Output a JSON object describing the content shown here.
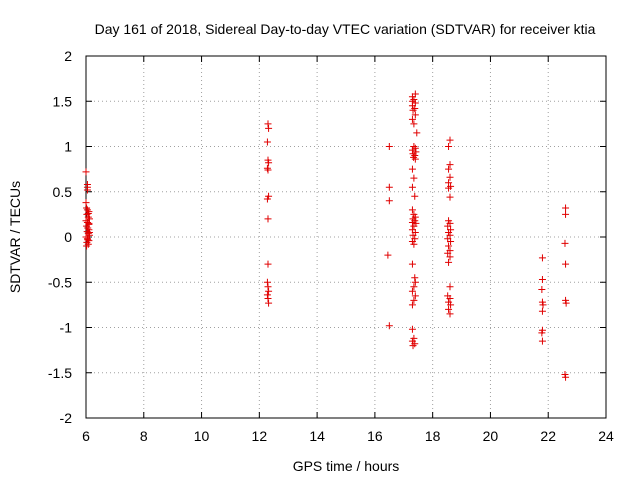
{
  "chart_data": {
    "type": "scatter",
    "title": "Day 161 of 2018, Sidereal Day-to-day VTEC variation (SDTVAR) for receiver ktia",
    "xlabel": "GPS time / hours",
    "ylabel": "SDTVAR / TECUs",
    "xlim": [
      6,
      24
    ],
    "ylim": [
      -2,
      2
    ],
    "xticks": [
      6,
      8,
      10,
      12,
      14,
      16,
      18,
      20,
      22,
      24
    ],
    "yticks": [
      -2,
      -1.5,
      -1,
      -0.5,
      0,
      0.5,
      1,
      1.5,
      2
    ],
    "ytick_labels": [
      "-2",
      "-1.5",
      "-1",
      "-0.5",
      "0",
      "0.5",
      "1",
      "1.5",
      "2"
    ],
    "grid": true,
    "marker": "plus",
    "marker_color": "#e00000",
    "points": [
      [
        6.0,
        0.72
      ],
      [
        6.05,
        0.58
      ],
      [
        6.05,
        0.55
      ],
      [
        6.05,
        0.52
      ],
      [
        6.0,
        0.38
      ],
      [
        6.02,
        0.32
      ],
      [
        6.05,
        0.3
      ],
      [
        6.1,
        0.28
      ],
      [
        6.08,
        0.26
      ],
      [
        6.03,
        0.25
      ],
      [
        6.08,
        0.22
      ],
      [
        6.12,
        0.2
      ],
      [
        6.0,
        0.18
      ],
      [
        6.05,
        0.16
      ],
      [
        6.1,
        0.14
      ],
      [
        6.02,
        0.12
      ],
      [
        6.06,
        0.1
      ],
      [
        6.1,
        0.08
      ],
      [
        6.04,
        0.06
      ],
      [
        6.08,
        0.04
      ],
      [
        6.12,
        0.02
      ],
      [
        6.0,
        0.0
      ],
      [
        6.05,
        -0.02
      ],
      [
        6.1,
        -0.04
      ],
      [
        6.03,
        -0.06
      ],
      [
        6.08,
        -0.08
      ],
      [
        6.02,
        -0.1
      ],
      [
        6.12,
        0.05
      ],
      [
        6.06,
        -0.03
      ],
      [
        6.1,
        0.15
      ],
      [
        12.3,
        1.25
      ],
      [
        12.32,
        1.2
      ],
      [
        12.28,
        1.05
      ],
      [
        12.3,
        0.85
      ],
      [
        12.32,
        0.82
      ],
      [
        12.28,
        0.76
      ],
      [
        12.3,
        0.74
      ],
      [
        12.32,
        0.45
      ],
      [
        12.28,
        0.42
      ],
      [
        12.3,
        0.2
      ],
      [
        12.3,
        -0.3
      ],
      [
        12.28,
        -0.5
      ],
      [
        12.3,
        -0.55
      ],
      [
        12.32,
        -0.6
      ],
      [
        12.28,
        -0.64
      ],
      [
        12.3,
        -0.68
      ],
      [
        12.32,
        -0.73
      ],
      [
        16.5,
        1.0
      ],
      [
        16.5,
        0.55
      ],
      [
        16.5,
        0.4
      ],
      [
        16.45,
        -0.2
      ],
      [
        16.5,
        -0.98
      ],
      [
        17.3,
        1.55
      ],
      [
        17.4,
        1.58
      ],
      [
        17.35,
        1.52
      ],
      [
        17.3,
        1.5
      ],
      [
        17.4,
        1.48
      ],
      [
        17.3,
        1.45
      ],
      [
        17.38,
        1.42
      ],
      [
        17.32,
        1.4
      ],
      [
        17.4,
        1.35
      ],
      [
        17.3,
        1.3
      ],
      [
        17.35,
        1.25
      ],
      [
        17.45,
        1.15
      ],
      [
        17.35,
        1.0
      ],
      [
        17.4,
        0.98
      ],
      [
        17.3,
        0.96
      ],
      [
        17.42,
        0.94
      ],
      [
        17.32,
        0.92
      ],
      [
        17.38,
        0.9
      ],
      [
        17.34,
        0.88
      ],
      [
        17.4,
        0.86
      ],
      [
        17.3,
        0.75
      ],
      [
        17.35,
        0.65
      ],
      [
        17.3,
        0.55
      ],
      [
        17.38,
        0.45
      ],
      [
        17.3,
        0.3
      ],
      [
        17.35,
        0.25
      ],
      [
        17.4,
        0.22
      ],
      [
        17.32,
        0.2
      ],
      [
        17.38,
        0.18
      ],
      [
        17.3,
        0.16
      ],
      [
        17.42,
        0.15
      ],
      [
        17.35,
        0.12
      ],
      [
        17.3,
        0.08
      ],
      [
        17.4,
        0.05
      ],
      [
        17.32,
        0.02
      ],
      [
        17.38,
        -0.02
      ],
      [
        17.3,
        -0.05
      ],
      [
        17.35,
        -0.08
      ],
      [
        17.3,
        -0.3
      ],
      [
        17.38,
        -0.45
      ],
      [
        17.4,
        -0.5
      ],
      [
        17.35,
        -0.55
      ],
      [
        17.3,
        -0.6
      ],
      [
        17.4,
        -0.65
      ],
      [
        17.35,
        -0.7
      ],
      [
        17.3,
        -0.75
      ],
      [
        17.3,
        -1.02
      ],
      [
        17.35,
        -1.12
      ],
      [
        17.3,
        -1.15
      ],
      [
        17.38,
        -1.18
      ],
      [
        17.32,
        -1.2
      ],
      [
        18.6,
        1.07
      ],
      [
        18.55,
        1.0
      ],
      [
        18.6,
        0.8
      ],
      [
        18.55,
        0.75
      ],
      [
        18.6,
        0.66
      ],
      [
        18.55,
        0.6
      ],
      [
        18.62,
        0.56
      ],
      [
        18.55,
        0.54
      ],
      [
        18.6,
        0.44
      ],
      [
        18.55,
        0.18
      ],
      [
        18.6,
        0.15
      ],
      [
        18.52,
        0.12
      ],
      [
        18.62,
        0.08
      ],
      [
        18.55,
        0.05
      ],
      [
        18.6,
        0.02
      ],
      [
        18.52,
        -0.02
      ],
      [
        18.62,
        -0.05
      ],
      [
        18.55,
        -0.1
      ],
      [
        18.6,
        -0.15
      ],
      [
        18.52,
        -0.18
      ],
      [
        18.6,
        -0.22
      ],
      [
        18.55,
        -0.28
      ],
      [
        18.6,
        -0.55
      ],
      [
        18.52,
        -0.65
      ],
      [
        18.6,
        -0.68
      ],
      [
        18.55,
        -0.72
      ],
      [
        18.62,
        -0.75
      ],
      [
        18.55,
        -0.8
      ],
      [
        18.6,
        -0.85
      ],
      [
        21.8,
        -0.23
      ],
      [
        21.8,
        -0.47
      ],
      [
        21.78,
        -0.58
      ],
      [
        21.8,
        -0.72
      ],
      [
        21.82,
        -0.75
      ],
      [
        21.8,
        -0.82
      ],
      [
        21.8,
        -1.03
      ],
      [
        21.78,
        -1.06
      ],
      [
        21.8,
        -1.15
      ],
      [
        22.6,
        0.32
      ],
      [
        22.6,
        0.25
      ],
      [
        22.58,
        -0.07
      ],
      [
        22.6,
        -0.3
      ],
      [
        22.6,
        -0.7
      ],
      [
        22.62,
        -0.73
      ],
      [
        22.58,
        -1.52
      ],
      [
        22.6,
        -1.55
      ]
    ]
  }
}
